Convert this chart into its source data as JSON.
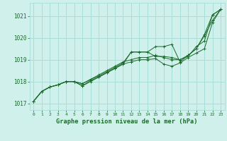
{
  "title": "Graphe pression niveau de la mer (hPa)",
  "background_color": "#cff0eb",
  "grid_color": "#a8ddd8",
  "line_color": "#1a6b2a",
  "xlim": [
    -0.5,
    23.5
  ],
  "ylim": [
    1016.7,
    1021.6
  ],
  "yticks": [
    1017,
    1018,
    1019,
    1020,
    1021
  ],
  "xticks": [
    0,
    1,
    2,
    3,
    4,
    5,
    6,
    7,
    8,
    9,
    10,
    11,
    12,
    13,
    14,
    15,
    16,
    17,
    18,
    19,
    20,
    21,
    22,
    23
  ],
  "series": [
    [
      1017.1,
      1017.55,
      1017.75,
      1017.85,
      1018.0,
      1018.0,
      1017.9,
      1018.1,
      1018.3,
      1018.5,
      1018.7,
      1018.9,
      1019.0,
      1019.1,
      1019.1,
      1019.2,
      1019.1,
      1019.0,
      1019.0,
      1019.2,
      1019.5,
      1020.1,
      1020.8,
      1021.3
    ],
    [
      1017.1,
      1017.55,
      1017.75,
      1017.85,
      1018.0,
      1018.0,
      1017.8,
      1018.0,
      1018.2,
      1018.4,
      1018.6,
      1018.8,
      1018.9,
      1019.0,
      1019.0,
      1019.05,
      1018.8,
      1018.7,
      1018.85,
      1019.1,
      1019.3,
      1019.5,
      1020.7,
      1021.3
    ],
    [
      1017.1,
      1017.55,
      1017.75,
      1017.85,
      1018.0,
      1018.0,
      1017.9,
      1018.1,
      1018.25,
      1018.45,
      1018.65,
      1018.85,
      1019.35,
      1019.35,
      1019.35,
      1019.15,
      1019.15,
      1019.1,
      1019.0,
      1019.15,
      1019.6,
      1019.85,
      1021.05,
      1021.3
    ],
    [
      1017.1,
      1017.55,
      1017.75,
      1017.85,
      1018.0,
      1018.0,
      1017.8,
      1018.05,
      1018.2,
      1018.4,
      1018.6,
      1018.8,
      1019.35,
      1019.35,
      1019.35,
      1019.6,
      1019.6,
      1019.7,
      1018.9,
      1019.2,
      1019.5,
      1020.15,
      1021.05,
      1021.3
    ]
  ]
}
